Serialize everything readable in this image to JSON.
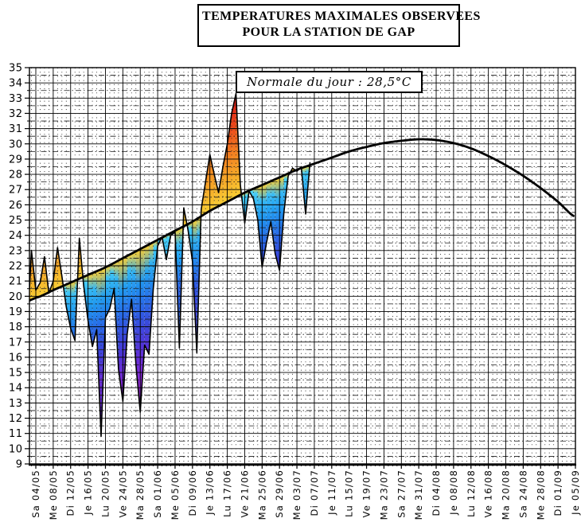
{
  "chart_data": {
    "type": "area",
    "title": "TEMPERATURES MAXIMALES OBSERVEES",
    "subtitle": "POUR LA STATION DE GAP",
    "annotation": "Normale du jour : 28,5°C",
    "normale_du_jour_value": "28,5°C",
    "y_axis": {
      "min": 9,
      "max": 35,
      "major_step": 1,
      "minor_step": 0.5,
      "tick_labels": [
        35,
        34,
        33,
        32,
        31,
        30,
        29,
        28,
        27,
        26,
        25,
        24,
        23,
        22,
        21,
        20,
        19,
        18,
        17,
        16,
        15,
        14,
        13,
        12,
        11,
        10,
        9
      ]
    },
    "x_axis": {
      "domain_days": [
        -1.463,
        124
      ],
      "label_step_days": 4,
      "label_days": [
        0,
        4,
        8,
        12,
        16,
        20,
        24,
        28,
        32,
        36,
        40,
        44,
        48,
        52,
        56,
        60,
        64,
        68,
        72,
        76,
        80,
        84,
        88,
        92,
        96,
        100,
        104,
        108,
        112,
        116,
        120,
        124
      ],
      "labels": [
        "Sa 04/05",
        "Me 08/05",
        "Di 12/05",
        "Je 16/05",
        "Lu 20/05",
        "Ve 24/05",
        "Ma 28/05",
        "Sa 01/06",
        "Me 05/06",
        "Di 09/06",
        "Je 13/06",
        "Lu 17/06",
        "Ve 21/06",
        "Ma 25/06",
        "Sa 29/06",
        "Me 03/07",
        "Di 07/07",
        "Je 11/07",
        "Lu 15/07",
        "Ve 19/07",
        "Ma 23/07",
        "Sa 27/07",
        "Me 31/07",
        "Di 04/08",
        "Je 08/08",
        "Lu 12/08",
        "Ve 16/08",
        "Ma 20/08",
        "Sa 24/08",
        "Me 28/08",
        "Di 01/09",
        "Je 05/09"
      ]
    },
    "series": [
      {
        "name": "temperature-maximale-observee",
        "days": [
          -1.463,
          -1,
          0,
          1,
          2,
          3,
          4,
          5,
          6,
          7,
          8,
          9,
          10,
          11,
          12,
          13,
          14,
          15,
          16,
          17,
          18,
          19,
          20,
          21,
          22,
          23,
          24,
          25,
          26,
          27,
          28,
          29,
          30,
          31,
          32,
          33,
          34,
          35,
          36,
          37,
          38,
          39,
          40,
          41,
          42,
          43,
          44,
          45,
          46,
          47,
          48,
          49,
          50,
          51,
          52,
          53,
          54,
          55,
          56,
          57,
          58,
          59,
          60,
          61,
          62,
          63
        ],
        "values": [
          20.5,
          23.0,
          20.4,
          20.9,
          22.6,
          20.2,
          21.0,
          23.2,
          21.3,
          19.3,
          17.9,
          17.1,
          23.8,
          20.7,
          18.4,
          16.7,
          17.8,
          10.8,
          18.6,
          19.2,
          20.5,
          15.2,
          13.1,
          17.5,
          19.8,
          15.5,
          12.4,
          16.8,
          16.2,
          20.5,
          23.3,
          23.9,
          22.4,
          24.0,
          24.2,
          16.6,
          25.8,
          24.3,
          22.3,
          16.3,
          25.7,
          27.5,
          29.3,
          28.0,
          26.8,
          28.5,
          30.0,
          32.0,
          33.3,
          27.3,
          24.8,
          26.9,
          26.4,
          25.0,
          21.9,
          23.5,
          24.9,
          22.8,
          21.7,
          25.5,
          27.9,
          28.4,
          28.2,
          28.5,
          25.4,
          28.8
        ]
      },
      {
        "name": "normale-saisonniere",
        "start_day": 0,
        "day_step": 4,
        "values": [
          19.9,
          20.4,
          20.9,
          21.4,
          21.9,
          22.5,
          23.1,
          23.7,
          24.3,
          24.9,
          25.6,
          26.2,
          26.8,
          27.3,
          27.8,
          28.3,
          28.7,
          29.1,
          29.5,
          29.8,
          30.05,
          30.2,
          30.3,
          30.25,
          30.05,
          29.7,
          29.2,
          28.6,
          27.9,
          27.1,
          26.2,
          25.2
        ]
      }
    ],
    "colors": {
      "line": "#000000",
      "grid": "#000000",
      "deviation_below_anchors": [
        [
          0,
          "#4FD8FA"
        ],
        [
          2,
          "#1E9CF0"
        ],
        [
          4,
          "#2A60E6"
        ],
        [
          6,
          "#4436D6"
        ],
        [
          8,
          "#7F28D8"
        ],
        [
          10,
          "#AE2ADC"
        ],
        [
          12,
          "#C33EE6"
        ]
      ],
      "deviation_above_anchors": [
        [
          0,
          "#F8CE33"
        ],
        [
          1.5,
          "#F6A827"
        ],
        [
          3,
          "#F28020"
        ],
        [
          4.5,
          "#EC4E1B"
        ],
        [
          6,
          "#E22417"
        ],
        [
          8,
          "#C81212"
        ]
      ]
    },
    "layout_hints": {
      "grid": "major 1°C solid / 0.5°C dash-dot; vertical solid every 4 days, dotted daily",
      "x_labels_rotated": true,
      "legend": "none",
      "observed_data_ends_day": 63
    }
  }
}
